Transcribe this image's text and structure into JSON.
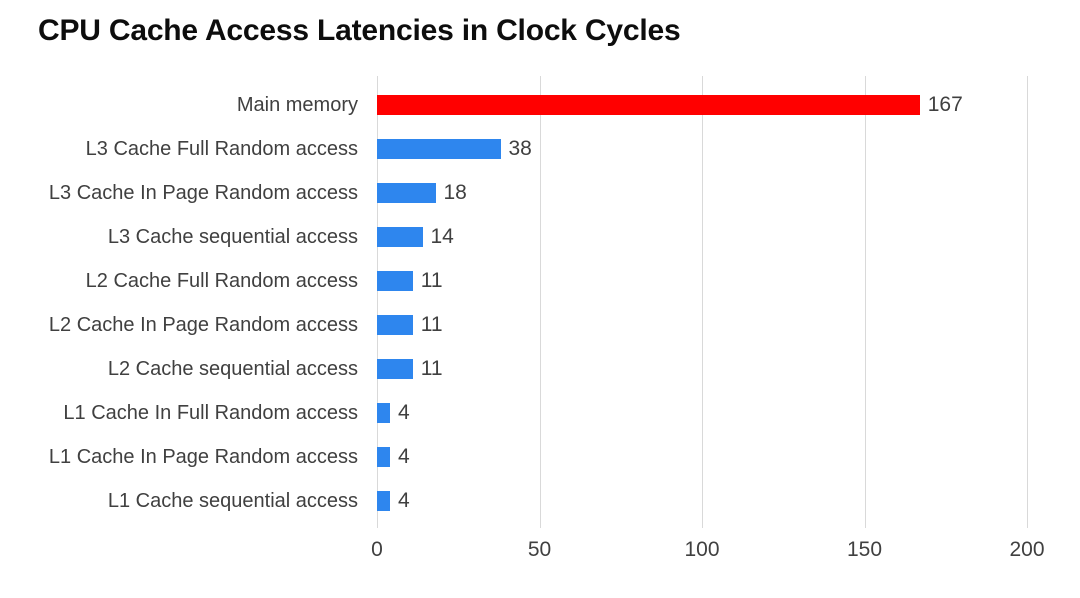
{
  "page": {
    "background": "#FFFFFF"
  },
  "chart_data": {
    "type": "bar",
    "orientation": "horizontal",
    "title": "CPU Cache Access Latencies in Clock Cycles",
    "xlabel": "",
    "ylabel": "",
    "categories": [
      "Main memory",
      "L3 Cache Full Random access",
      "L3 Cache In Page Random access",
      "L3 Cache sequential access",
      "L2 Cache Full Random access",
      "L2 Cache In Page Random access",
      "L2 Cache sequential access",
      "L1 Cache In Full Random access",
      "L1 Cache In Page Random access",
      "L1 Cache sequential access"
    ],
    "values": [
      167,
      38,
      18,
      14,
      11,
      11,
      11,
      4,
      4,
      4
    ],
    "data_labels": [
      "167",
      "38",
      "18",
      "14",
      "11",
      "11",
      "11",
      "4",
      "4",
      "4"
    ],
    "bar_colors": [
      "#FF0000",
      "#2E86EE",
      "#2E86EE",
      "#2E86EE",
      "#2E86EE",
      "#2E86EE",
      "#2E86EE",
      "#2E86EE",
      "#2E86EE",
      "#2E86EE"
    ],
    "xlim": [
      0,
      200
    ],
    "x_ticks": [
      0,
      50,
      100,
      150,
      200
    ],
    "x_tick_labels": [
      "0",
      "50",
      "100",
      "150",
      "200"
    ],
    "grid": "vertical",
    "legend": "none",
    "colors": {
      "highlight_bar": "#FF0000",
      "default_bar": "#2E86EE",
      "title_text": "#0D0D0D",
      "category_text": "#404040",
      "value_text": "#404040",
      "tick_text": "#404040",
      "gridline": "#D9D9D9"
    }
  }
}
